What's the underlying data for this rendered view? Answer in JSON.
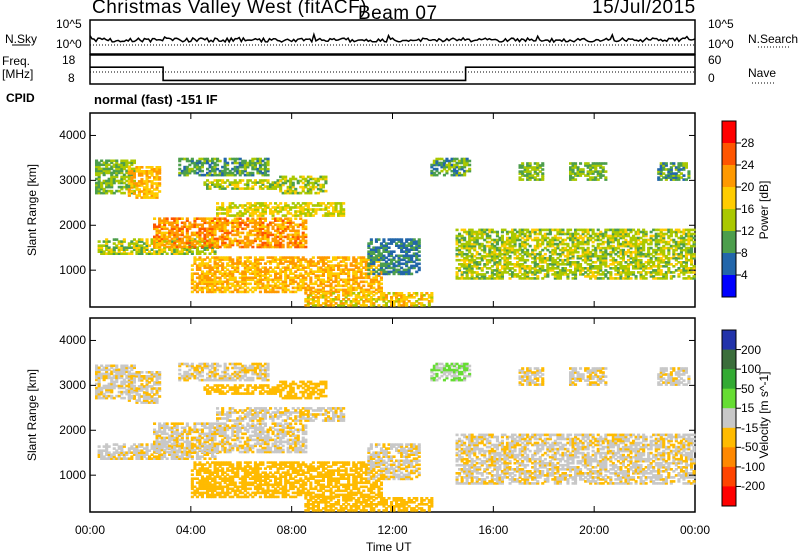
{
  "header": {
    "station": "Christmas Valley West (fitACF)",
    "beam": "Beam 07",
    "date": "15/Jul/2015"
  },
  "noise_panel": {
    "left_label": "N.Sky",
    "right_label": "N.Search",
    "ticks": [
      "10^5",
      "10^0"
    ]
  },
  "freq_panel": {
    "left_label_top": "Freq.",
    "left_label_bottom": "[MHz]",
    "left_ticks": [
      "18",
      "8"
    ],
    "right_label": "Nave",
    "right_ticks": [
      "60",
      "0"
    ]
  },
  "cpid": {
    "label": "CPID",
    "value": "normal (fast) -151 IF"
  },
  "power_colorbar": {
    "label": "Power [dB]",
    "ticks": [
      "28",
      "24",
      "20",
      "16",
      "12",
      "8",
      "4"
    ],
    "colors": [
      "#ff0000",
      "#ff5500",
      "#ff9900",
      "#ffcc00",
      "#aac800",
      "#4c9e4c",
      "#2266aa",
      "#0000ff"
    ]
  },
  "velocity_colorbar": {
    "label": "Velocity [m s^-1]",
    "ticks": [
      "200",
      "100",
      "50",
      "15",
      "-15",
      "-50",
      "-100",
      "-200"
    ],
    "colors": [
      "#2233aa",
      "#3b6e3b",
      "#33aa33",
      "#66dd33",
      "#c8c8c8",
      "#ffbb00",
      "#ff8800",
      "#ff4400",
      "#ff0000"
    ]
  },
  "chart_data": {
    "type": "heatmap",
    "xlabel": "Time UT",
    "x_ticks": [
      "00:00",
      "04:00",
      "08:00",
      "12:00",
      "16:00",
      "20:00",
      "00:00"
    ],
    "xlim_hours": [
      0,
      24
    ],
    "ylabel": "Slant Range [km]",
    "y_ticks": [
      4000,
      3000,
      2000,
      1000
    ],
    "ylim_km": [
      180,
      4500
    ],
    "frequency_mhz": [
      {
        "from_h": 0,
        "to_h": 2.9,
        "value": 15
      },
      {
        "from_h": 2.9,
        "to_h": 14.9,
        "value": 9.5
      },
      {
        "from_h": 14.9,
        "to_h": 24,
        "value": 15
      }
    ],
    "scatter_regions": [
      {
        "t0": 0.3,
        "t1": 5.0,
        "r0": 1350,
        "r1": 1700,
        "power": 14,
        "velocity": -10
      },
      {
        "t0": 2.5,
        "t1": 8.5,
        "r0": 1500,
        "r1": 2150,
        "power": 22,
        "velocity": -10
      },
      {
        "t0": 4.0,
        "t1": 11.5,
        "r0": 500,
        "r1": 1300,
        "power": 20,
        "velocity": -30
      },
      {
        "t0": 5.0,
        "t1": 10.0,
        "r0": 2200,
        "r1": 2500,
        "power": 16,
        "velocity": -10
      },
      {
        "t0": 0.2,
        "t1": 1.8,
        "r0": 2700,
        "r1": 3450,
        "power": 12,
        "velocity": -10
      },
      {
        "t0": 1.5,
        "t1": 2.8,
        "r0": 2600,
        "r1": 3300,
        "power": 20,
        "velocity": -10
      },
      {
        "t0": 3.5,
        "t1": 7.0,
        "r0": 3100,
        "r1": 3500,
        "power": 10,
        "velocity": -10
      },
      {
        "t0": 4.5,
        "t1": 7.5,
        "r0": 2800,
        "r1": 3000,
        "power": 14,
        "velocity": -30
      },
      {
        "t0": 7.5,
        "t1": 9.3,
        "r0": 2700,
        "r1": 3100,
        "power": 14,
        "velocity": -30
      },
      {
        "t0": 8.5,
        "t1": 13.5,
        "r0": 200,
        "r1": 500,
        "power": 18,
        "velocity": -30
      },
      {
        "t0": 11.0,
        "t1": 13.0,
        "r0": 900,
        "r1": 1700,
        "power": 8,
        "velocity": -10
      },
      {
        "t0": 13.5,
        "t1": 15.0,
        "r0": 3100,
        "r1": 3500,
        "power": 10,
        "velocity": 20
      },
      {
        "t0": 14.5,
        "t1": 24.0,
        "r0": 800,
        "r1": 1900,
        "power": 14,
        "velocity": -10
      },
      {
        "t0": 17.0,
        "t1": 18.0,
        "r0": 3000,
        "r1": 3400,
        "power": 12,
        "velocity": -10
      },
      {
        "t0": 19.0,
        "t1": 20.5,
        "r0": 3000,
        "r1": 3400,
        "power": 12,
        "velocity": -10
      },
      {
        "t0": 22.5,
        "t1": 23.8,
        "r0": 3000,
        "r1": 3400,
        "power": 10,
        "velocity": -10
      }
    ]
  }
}
